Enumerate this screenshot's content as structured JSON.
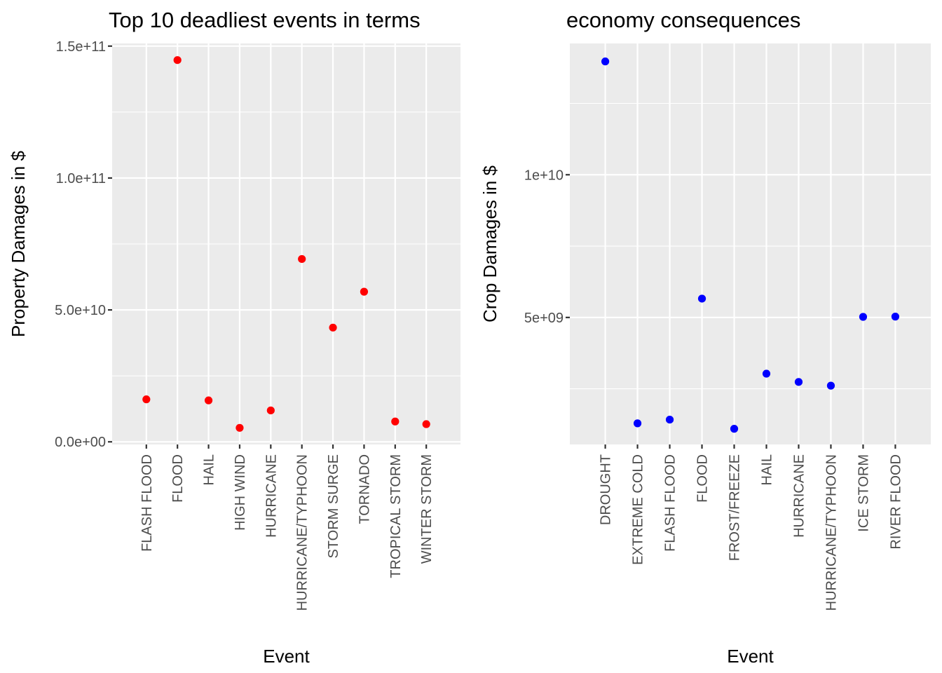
{
  "chart_data": [
    {
      "type": "scatter",
      "title": "Top 10 deadliest events in terms",
      "xlabel": "Event",
      "ylabel": "Property Damages in $",
      "categories": [
        "FLASH FLOOD",
        "FLOOD",
        "HAIL",
        "HIGH WIND",
        "HURRICANE",
        "HURRICANE/TYPHOON",
        "STORM SURGE",
        "TORNADO",
        "TROPICAL STORM",
        "WINTER STORM"
      ],
      "values": [
        16100000000,
        144700000000,
        15700000000,
        5300000000,
        11900000000,
        69300000000,
        43300000000,
        56900000000,
        7700000000,
        6700000000
      ],
      "yticks": [
        0,
        50000000000,
        100000000000,
        150000000000
      ],
      "ytick_labels": [
        "0.0e+00",
        "5.0e+10",
        "1.0e+11",
        "1.5e+11"
      ],
      "ylim": [
        -1000000000,
        151000000000
      ],
      "point_color": "#ff0000",
      "grid": true,
      "legend": "none"
    },
    {
      "type": "scatter",
      "title": "economy consequences",
      "xlabel": "Event",
      "ylabel": "Crop Damages in $",
      "categories": [
        "DROUGHT",
        "EXTREME COLD",
        "FLASH FLOOD",
        "FLOOD",
        "FROST/FREEZE",
        "HAIL",
        "HURRICANE",
        "HURRICANE/TYPHOON",
        "ICE STORM",
        "RIVER FLOOD"
      ],
      "values": [
        13970000000,
        1290000000,
        1420000000,
        5660000000,
        1100000000,
        3030000000,
        2740000000,
        2610000000,
        5020000000,
        5030000000
      ],
      "yticks": [
        5000000000,
        10000000000
      ],
      "ytick_labels": [
        "5e+09",
        "1e+10"
      ],
      "ylim": [
        550000000,
        14600000000
      ],
      "point_color": "#0000ff",
      "grid": true,
      "legend": "none"
    }
  ]
}
